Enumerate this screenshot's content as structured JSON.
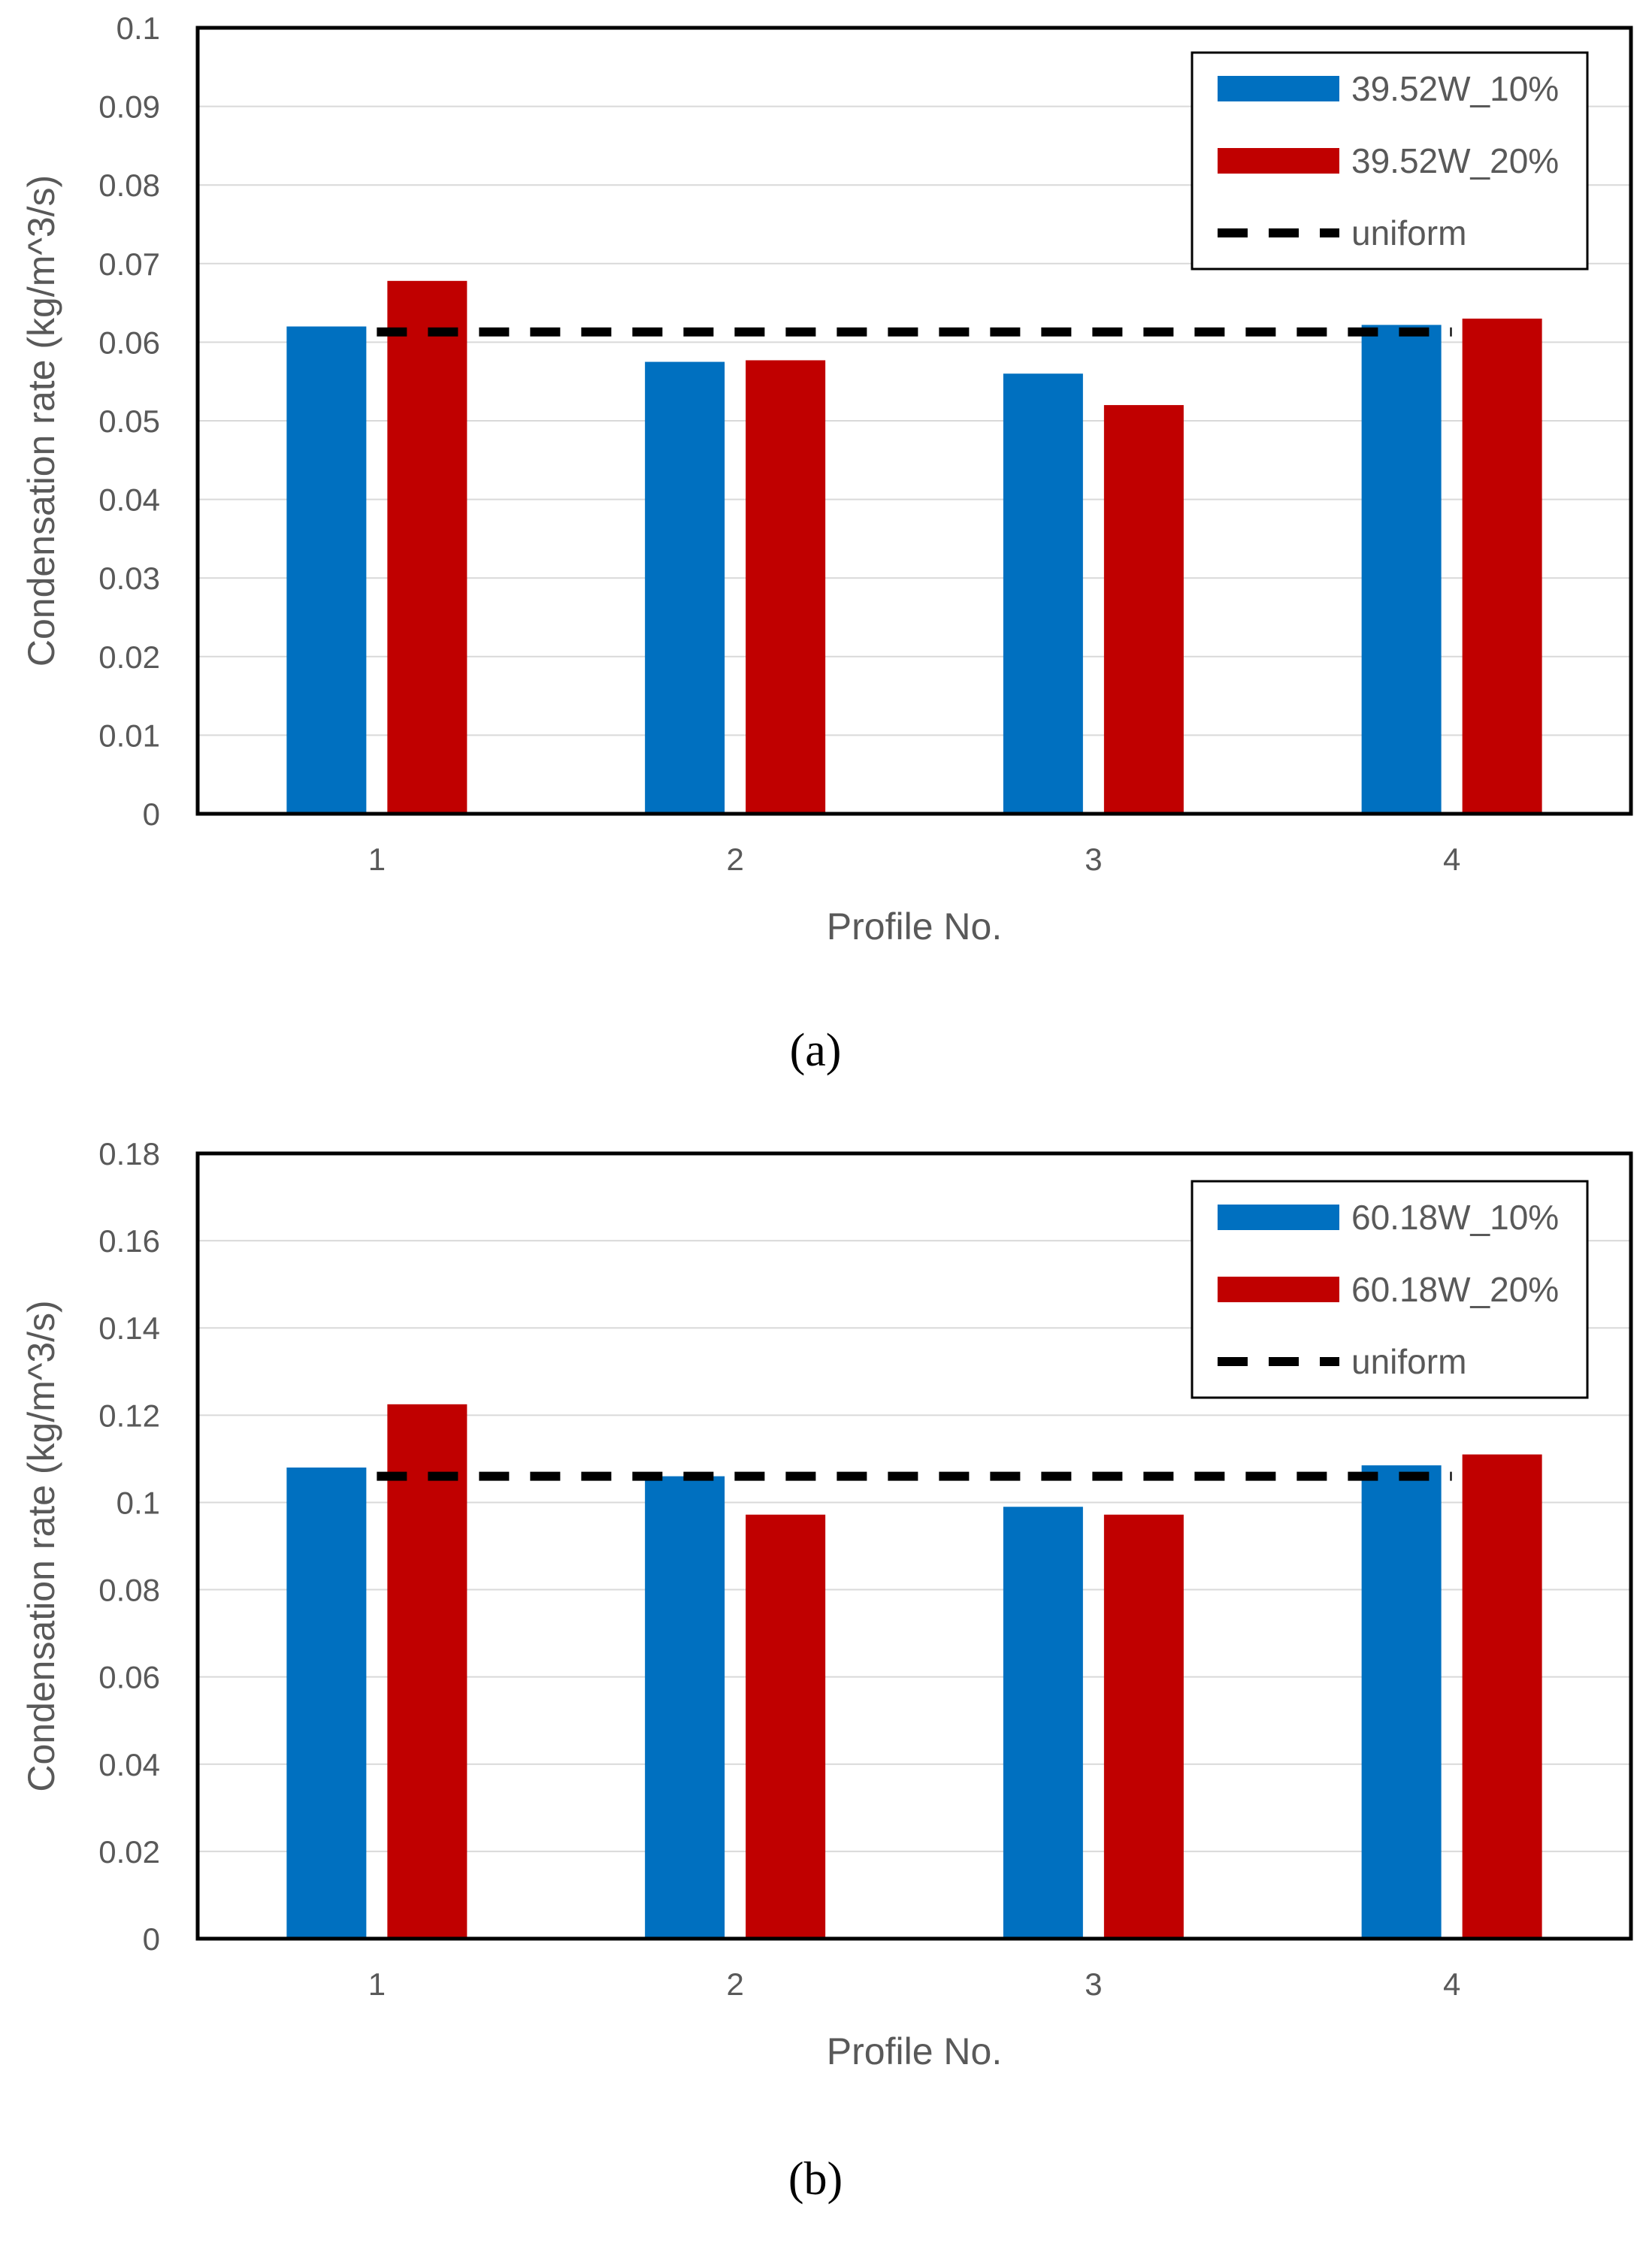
{
  "chart_data": [
    {
      "panel_label": "(a)",
      "type": "bar",
      "categories": [
        "1",
        "2",
        "3",
        "4"
      ],
      "series": [
        {
          "name": "39.52W_10%",
          "color": "#0070C0",
          "values": [
            0.062,
            0.0575,
            0.056,
            0.0622
          ]
        },
        {
          "name": "39.52W_20%",
          "color": "#C00000",
          "values": [
            0.0678,
            0.0577,
            0.052,
            0.063
          ]
        }
      ],
      "reference_line": {
        "name": "uniform",
        "value": 0.0613,
        "color": "#000000",
        "style": "dashed"
      },
      "xlabel": "Profile No.",
      "ylabel": "Condensation rate (kg/m^3/s)",
      "ylim": [
        0,
        0.1
      ],
      "yticks": [
        "0",
        "0.01",
        "0.02",
        "0.03",
        "0.04",
        "0.05",
        "0.06",
        "0.07",
        "0.08",
        "0.09",
        "0.1"
      ],
      "grid": true,
      "legend_position": "top-right"
    },
    {
      "panel_label": "(b)",
      "type": "bar",
      "categories": [
        "1",
        "2",
        "3",
        "4"
      ],
      "series": [
        {
          "name": "60.18W_10%",
          "color": "#0070C0",
          "values": [
            0.108,
            0.106,
            0.099,
            0.1085
          ]
        },
        {
          "name": "60.18W_20%",
          "color": "#C00000",
          "values": [
            0.1225,
            0.0972,
            0.0972,
            0.111
          ]
        }
      ],
      "reference_line": {
        "name": "uniform",
        "value": 0.106,
        "color": "#000000",
        "style": "dashed"
      },
      "xlabel": "Profile No.",
      "ylabel": "Condensation rate (kg/m^3/s)",
      "ylim": [
        0,
        0.18
      ],
      "yticks": [
        "0",
        "0.02",
        "0.04",
        "0.06",
        "0.08",
        "0.1",
        "0.12",
        "0.14",
        "0.16",
        "0.18"
      ],
      "grid": true,
      "legend_position": "top-right"
    }
  ]
}
